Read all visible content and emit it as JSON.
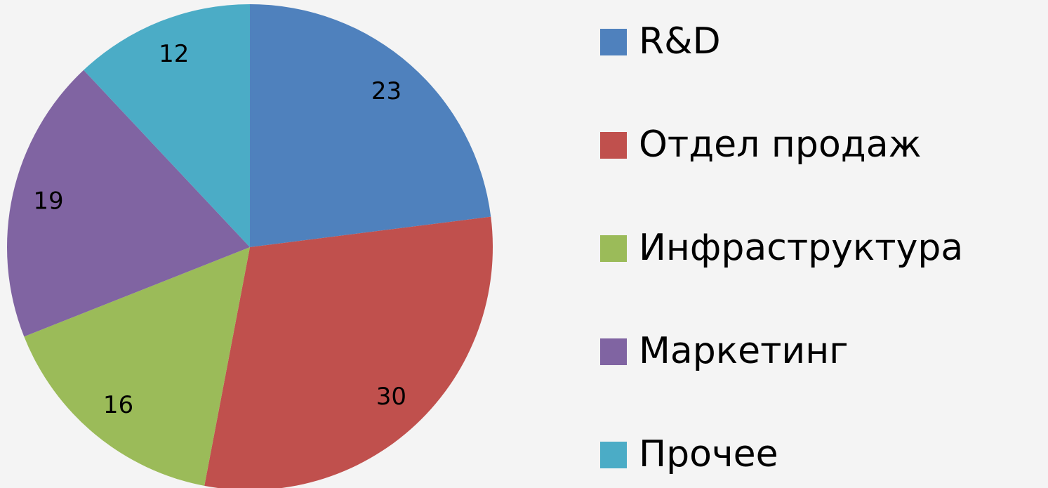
{
  "chart_data": {
    "type": "pie",
    "categories": [
      "R&D",
      "Отдел продаж",
      "Инфраструктура",
      "Маркетинг",
      "Прочее"
    ],
    "values": [
      23,
      30,
      16,
      19,
      12
    ],
    "colors": [
      "#4f81bd",
      "#c0504d",
      "#9bbb59",
      "#8064a2",
      "#4bacc6"
    ],
    "legend": "right"
  }
}
